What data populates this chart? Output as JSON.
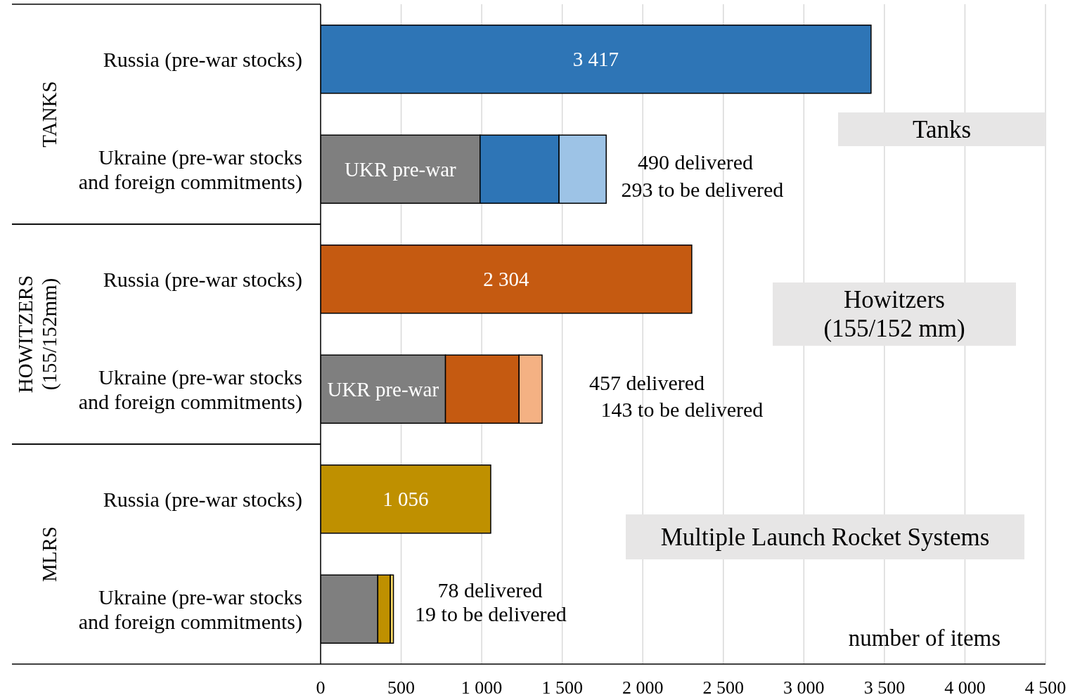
{
  "chart_data": {
    "type": "bar",
    "orientation": "horizontal",
    "stacked": true,
    "categories": [
      "Russia (pre-war stocks)",
      "Ukraine (pre-war stocks and foreign commitments)",
      "Russia (pre-war stocks)",
      "Ukraine (pre-war stocks and foreign commitments)",
      "Russia (pre-war stocks)",
      "Ukraine (pre-war stocks and foreign commitments)"
    ],
    "series": [
      {
        "colors": [
          "#2e75b6",
          null,
          "#c55a11",
          null,
          "#bf9000",
          null
        ],
        "values": [
          3417,
          null,
          2304,
          null,
          1056,
          null
        ],
        "value_labels": [
          "3 417",
          null,
          "2 304",
          null,
          "1 056",
          null
        ]
      },
      {
        "color": "#7f7f7f",
        "values": [
          null,
          990,
          null,
          775,
          null,
          355
        ],
        "value_labels": [
          null,
          "UKR pre-war",
          null,
          "UKR pre-war",
          null,
          null
        ]
      },
      {
        "colors": [
          null,
          "#2e75b6",
          null,
          "#c55a11",
          null,
          "#bf9000"
        ],
        "values": [
          null,
          490,
          null,
          457,
          null,
          78
        ]
      },
      {
        "colors": [
          null,
          "#9dc3e6",
          null,
          "#f4b183",
          null,
          "#ffd966"
        ],
        "values": [
          null,
          293,
          null,
          143,
          null,
          19
        ]
      }
    ],
    "xlim": [
      0,
      4500
    ],
    "xticks": [
      0,
      500,
      {
        "value": 1000,
        "label": "1 000"
      },
      {
        "value": 1500,
        "label": "1 500"
      },
      {
        "value": 2000,
        "label": "2 000"
      },
      {
        "value": 2500,
        "label": "2 500"
      },
      {
        "value": 3000,
        "label": "3 000"
      },
      {
        "value": 3500,
        "label": "3 500"
      },
      {
        "value": 4000,
        "label": "4 000"
      },
      {
        "value": 4500,
        "label": "4 500"
      }
    ],
    "xlabel": "number of items",
    "grid": "x",
    "annotations": [
      "TANKS",
      "HOWITZERS (155/152mm)",
      "MLRS",
      "Tanks",
      "Howitzers (155/152 mm)",
      "Multiple Launch Rocket Systems",
      "490 delivered",
      "293 to be delivered",
      "457 delivered",
      "143 to be delivered",
      "78 delivered",
      "19 to be delivered"
    ]
  }
}
